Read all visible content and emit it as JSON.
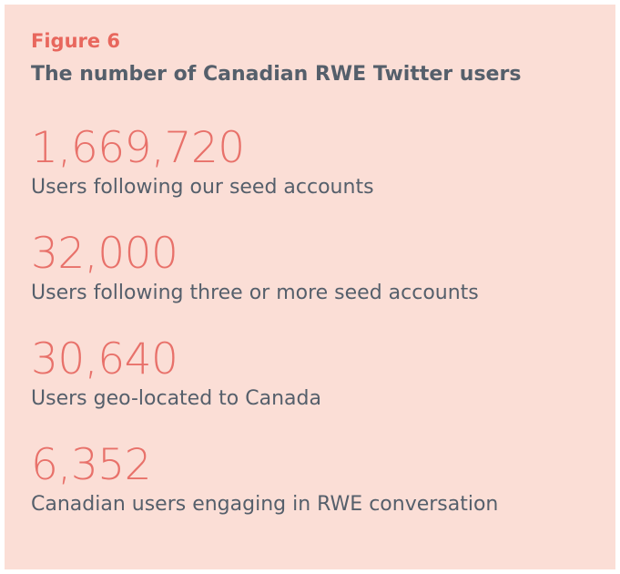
{
  "figure": {
    "label": "Figure 6",
    "title": "The number of Canadian RWE Twitter users",
    "stats": [
      {
        "value": "1,669,720",
        "label": "Users following our seed accounts"
      },
      {
        "value": "32,000",
        "label": "Users following three or more seed accounts"
      },
      {
        "value": "30,640",
        "label": "Users geo-located to Canada"
      },
      {
        "value": "6,352",
        "label": "Canadian users engaging in RWE conversation"
      }
    ]
  }
}
